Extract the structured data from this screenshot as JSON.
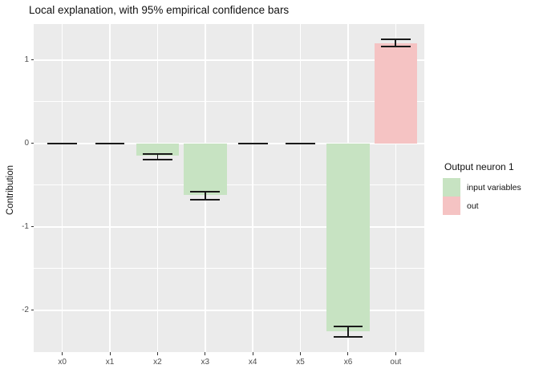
{
  "title": "Local explanation, with 95% empirical confidence bars",
  "y_axis": {
    "label": "Contribution",
    "tick_labels": [
      "1",
      "0",
      "-1",
      "-2"
    ]
  },
  "x_axis": {
    "tick_labels": [
      "x0",
      "x1",
      "x2",
      "x3",
      "x4",
      "x5",
      "x6",
      "out"
    ]
  },
  "legend": {
    "title": "Output neuron 1",
    "items": [
      {
        "label": "input variables",
        "color": "#c7e3c2"
      },
      {
        "label": "out",
        "color": "#f5c3c3"
      }
    ]
  },
  "colors": {
    "panel_background": "#ebebeb",
    "gridline": "#ffffff",
    "errorbar": "#1a1a1a",
    "tick_text": "#4d4d4d"
  },
  "chart_data": {
    "type": "bar",
    "title": "Local explanation, with 95% empirical confidence bars",
    "xlabel": "",
    "ylabel": "Contribution",
    "categories": [
      "x0",
      "x1",
      "x2",
      "x3",
      "x4",
      "x5",
      "x6",
      "out"
    ],
    "values": [
      0,
      0,
      -0.15,
      -0.62,
      0,
      0,
      -2.25,
      1.2
    ],
    "ci_low": [
      0,
      0,
      -0.19,
      -0.67,
      0,
      0,
      -2.32,
      1.16
    ],
    "ci_high": [
      0,
      0,
      -0.13,
      -0.58,
      0,
      0,
      -2.19,
      1.25
    ],
    "group": [
      "input variables",
      "input variables",
      "input variables",
      "input variables",
      "input variables",
      "input variables",
      "input variables",
      "out"
    ],
    "bar_colors": {
      "input variables": "#c7e3c2",
      "out": "#f5c3c3"
    },
    "legend_title": "Output neuron 1",
    "legend_position": "right",
    "ylim": [
      -2.5,
      1.43
    ],
    "yticks": [
      1,
      0,
      -1,
      -2
    ],
    "yticks_minor": [
      0.5,
      -0.5,
      -1.5
    ],
    "grid": true
  }
}
